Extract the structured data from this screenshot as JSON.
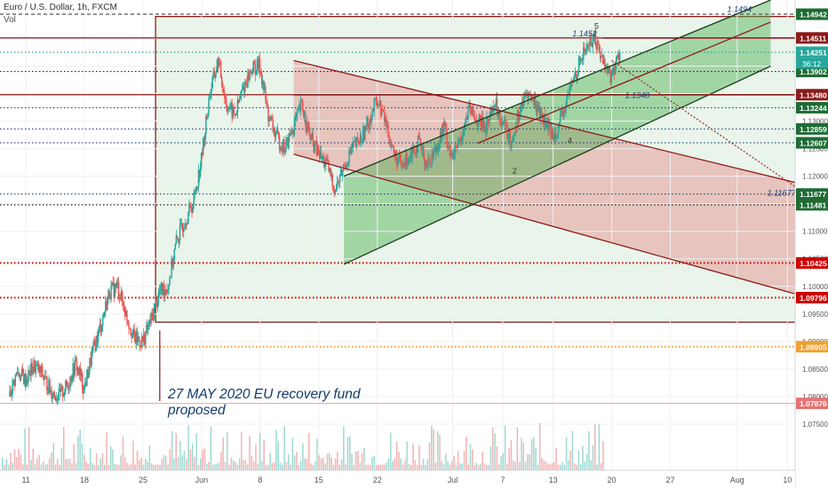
{
  "header": {
    "title": "Euro / U.S. Dollar, 1h, FXCM",
    "indicator": "Vol"
  },
  "chart_data": {
    "type": "line",
    "title": "Euro / U.S. Dollar, 1h, FXCM",
    "ylim": [
      1.07,
      1.152
    ],
    "yticks": [
      1.075,
      1.08,
      1.085,
      1.09,
      1.095,
      1.1,
      1.105,
      1.11,
      1.115,
      1.12,
      1.125,
      1.13,
      1.135,
      1.14,
      1.145
    ],
    "xticks": [
      {
        "label": "11",
        "d": -14
      },
      {
        "label": "18",
        "d": -7
      },
      {
        "label": "25",
        "d": 0
      },
      {
        "label": "Jun",
        "d": 7
      },
      {
        "label": "8",
        "d": 14
      },
      {
        "label": "15",
        "d": 21
      },
      {
        "label": "22",
        "d": 28
      },
      {
        "label": "Jul",
        "d": 37
      },
      {
        "label": "7",
        "d": 43
      },
      {
        "label": "13",
        "d": 49
      },
      {
        "label": "20",
        "d": 56
      },
      {
        "label": "27",
        "d": 63
      },
      {
        "label": "Aug",
        "d": 71
      },
      {
        "label": "10",
        "d": 77
      }
    ],
    "price_path": [
      [
        -16,
        1.08
      ],
      [
        -15,
        1.0845
      ],
      [
        -14,
        1.083
      ],
      [
        -13,
        1.0855
      ],
      [
        -12,
        1.084
      ],
      [
        -11,
        1.081
      ],
      [
        -10,
        1.08
      ],
      [
        -9,
        1.082
      ],
      [
        -8,
        1.086
      ],
      [
        -7,
        1.0815
      ],
      [
        -6,
        1.088
      ],
      [
        -5,
        1.093
      ],
      [
        -4,
        1.099
      ],
      [
        -3,
        1.1
      ],
      [
        -2,
        1.095
      ],
      [
        -1,
        1.0905
      ],
      [
        0,
        1.09
      ],
      [
        1,
        1.094
      ],
      [
        2,
        1.099
      ],
      [
        3,
        1.1
      ],
      [
        4,
        1.108
      ],
      [
        5,
        1.112
      ],
      [
        6,
        1.115
      ],
      [
        7,
        1.123
      ],
      [
        8,
        1.135
      ],
      [
        9,
        1.141
      ],
      [
        10,
        1.133
      ],
      [
        11,
        1.131
      ],
      [
        12,
        1.136
      ],
      [
        13,
        1.1395
      ],
      [
        14,
        1.14
      ],
      [
        15,
        1.131
      ],
      [
        16,
        1.127
      ],
      [
        17,
        1.125
      ],
      [
        18,
        1.129
      ],
      [
        19,
        1.133
      ],
      [
        20,
        1.127
      ],
      [
        21,
        1.124
      ],
      [
        22,
        1.122
      ],
      [
        23,
        1.1175
      ],
      [
        24,
        1.1215
      ],
      [
        25,
        1.125
      ],
      [
        26,
        1.1265
      ],
      [
        27,
        1.13
      ],
      [
        28,
        1.134
      ],
      [
        29,
        1.13
      ],
      [
        30,
        1.124
      ],
      [
        31,
        1.1215
      ],
      [
        32,
        1.1245
      ],
      [
        33,
        1.126
      ],
      [
        34,
        1.122
      ],
      [
        35,
        1.125
      ],
      [
        36,
        1.129
      ],
      [
        37,
        1.123
      ],
      [
        38,
        1.127
      ],
      [
        39,
        1.132
      ],
      [
        40,
        1.13
      ],
      [
        41,
        1.129
      ],
      [
        42,
        1.1335
      ],
      [
        43,
        1.13
      ],
      [
        44,
        1.126
      ],
      [
        45,
        1.132
      ],
      [
        46,
        1.135
      ],
      [
        47,
        1.133
      ],
      [
        48,
        1.13
      ],
      [
        49,
        1.1275
      ],
      [
        50,
        1.13
      ],
      [
        51,
        1.1355
      ],
      [
        52,
        1.14
      ],
      [
        53,
        1.1435
      ],
      [
        54,
        1.1452
      ],
      [
        55,
        1.141
      ],
      [
        56,
        1.138
      ],
      [
        57,
        1.1425
      ]
    ],
    "price_levels": [
      {
        "value": 1.14942,
        "label": "1.14942",
        "style": "dashed",
        "color": "#555555",
        "axis_color": "#1e6b34"
      },
      {
        "value": 1.14511,
        "label": "1.14511",
        "style": "solid",
        "color": "#8b1a1a",
        "axis_color": "#8b1a1a"
      },
      {
        "value": 1.14251,
        "label": "1.14251",
        "style": "dotted",
        "color": "#26a69a",
        "axis_color": "#26a69a"
      },
      {
        "value": 1.13902,
        "label": "1.13902",
        "style": "dotted",
        "color": "#222222",
        "axis_color": "#1e6b34"
      },
      {
        "value": 1.1348,
        "label": "1.13480",
        "style": "solid",
        "color": "#8b1a1a",
        "axis_color": "#8b1a1a"
      },
      {
        "value": 1.13244,
        "label": "1.13244",
        "style": "dotted",
        "color": "#1f3f7a",
        "axis_color": "#1e6b34"
      },
      {
        "value": 1.12859,
        "label": "1.12859",
        "style": "dotted",
        "color": "#1f3f7a",
        "axis_color": "#1e6b34"
      },
      {
        "value": 1.12607,
        "label": "1.12607",
        "style": "dotted",
        "color": "#1f3f7a",
        "axis_color": "#1e6b34"
      },
      {
        "value": 1.11677,
        "label": "1.11677",
        "style": "dotted",
        "color": "#1f3f7a",
        "axis_color": "#1e6b34"
      },
      {
        "value": 1.11481,
        "label": "1.11481",
        "style": "dotted",
        "color": "#222222",
        "axis_color": "#1e6b34"
      },
      {
        "value": 1.10425,
        "label": "1.10425",
        "style": "dotted",
        "color": "#cc0000",
        "axis_color": "#cc0000"
      },
      {
        "value": 1.09796,
        "label": "1.09796",
        "style": "dotted",
        "color": "#cc0000",
        "axis_color": "#cc0000"
      },
      {
        "value": 1.08905,
        "label": "1.08905",
        "style": "dotted",
        "color": "#f0a030",
        "axis_color": "#f0a030"
      },
      {
        "value": 1.07876,
        "label": "1.07876",
        "style": "solid",
        "color": "#e8b4b4",
        "axis_color": "#e57373"
      }
    ],
    "countdown": "36:12",
    "box": {
      "d1": 1.5,
      "d2": 83,
      "v1": 1.0935,
      "v2": 1.149
    },
    "green_channel": {
      "upper": [
        [
          24,
          1.12
        ],
        [
          75,
          1.152
        ]
      ],
      "lower": [
        [
          24,
          1.104
        ],
        [
          75,
          1.14
        ]
      ]
    },
    "red_channel": {
      "upper": [
        [
          18,
          1.141
        ],
        [
          83,
          1.117
        ]
      ],
      "lower": [
        [
          18,
          1.124
        ],
        [
          83,
          1.0965
        ]
      ]
    },
    "trend_lines": [
      {
        "from": [
          40,
          1.126
        ],
        "to": [
          75,
          1.148
        ]
      }
    ],
    "level_segments": [
      {
        "from": [
          55,
          1.14511
        ],
        "to": [
          88,
          1.14511
        ]
      },
      {
        "from": [
          18,
          1.1348
        ],
        "to": [
          88,
          1.1348
        ]
      }
    ],
    "projection": [
      [
        56,
        1.141
      ],
      [
        79,
        1.117
      ]
    ],
    "wave_points": [
      {
        "d": 44.4,
        "v": 1.1205,
        "label": "2"
      },
      {
        "d": 51,
        "v": 1.126,
        "label": "4"
      },
      {
        "d": 54.2,
        "v": 1.1468,
        "label": "5"
      }
    ],
    "price_labels": [
      {
        "d": 69.8,
        "v": 1.1498,
        "label": "1.1494"
      },
      {
        "d": 51.3,
        "v": 1.1454,
        "label": "1.1452"
      },
      {
        "d": 57.6,
        "v": 1.1342,
        "label": "1.1348"
      },
      {
        "d": 74.6,
        "v": 1.1165,
        "label": "1.11677"
      }
    ],
    "annotation": "27 MAY 2020 EU recovery fund proposed",
    "annotation_date": 2,
    "volume": {
      "seed": 7
    }
  }
}
